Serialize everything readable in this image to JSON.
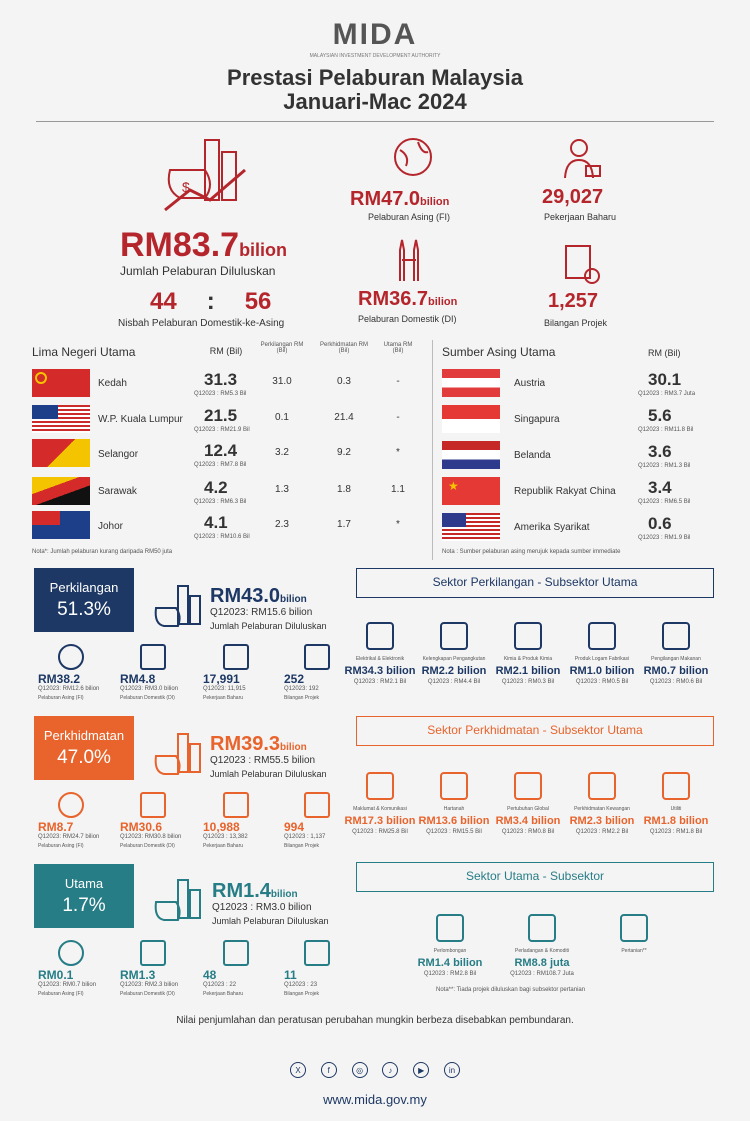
{
  "header": {
    "logo": "MIDA",
    "logo_sub": "MALAYSIAN INVESTMENT DEVELOPMENT AUTHORITY",
    "title1": "Prestasi Pelaburan Malaysia",
    "title2": "Januari-Mac 2024"
  },
  "summary": {
    "total": "RM83.7",
    "total_unit": "bilion",
    "total_label": "Jumlah Pelaburan Diluluskan",
    "ratio_dom": "44",
    "ratio_sep": ":",
    "ratio_for": "56",
    "ratio_label": "Nisbah Pelaburan Domestik-ke-Asing",
    "fi": "RM47.0",
    "fi_unit": "bilion",
    "fi_label": "Pelaburan Asing (FI)",
    "di": "RM36.7",
    "di_unit": "bilion",
    "di_label": "Pelaburan Domestik (DI)",
    "jobs": "29,027",
    "jobs_label": "Pekerjaan Baharu",
    "projects": "1,257",
    "projects_label": "Bilangan Projek"
  },
  "states": {
    "title": "Lima Negeri Utama",
    "col_rm": "RM (Bil)",
    "col_mfg": "Perkilangan RM (Bil)",
    "col_svc": "Perkhidmatan RM (Bil)",
    "col_pri": "Utama RM (Bil)",
    "rows": [
      {
        "name": "Kedah",
        "rm": "31.3",
        "prev": "Q12023 : RM5.3 Bil",
        "mfg": "31.0",
        "svc": "0.3",
        "pri": "-"
      },
      {
        "name": "W.P. Kuala Lumpur",
        "rm": "21.5",
        "prev": "Q12023 : RM21.9 Bil",
        "mfg": "0.1",
        "svc": "21.4",
        "pri": "-"
      },
      {
        "name": "Selangor",
        "rm": "12.4",
        "prev": "Q12023 : RM7.8 Bil",
        "mfg": "3.2",
        "svc": "9.2",
        "pri": "*"
      },
      {
        "name": "Sarawak",
        "rm": "4.2",
        "prev": "Q12023 : RM6.3 Bil",
        "mfg": "1.3",
        "svc": "1.8",
        "pri": "1.1"
      },
      {
        "name": "Johor",
        "rm": "4.1",
        "prev": "Q12023 : RM10.6 Bil",
        "mfg": "2.3",
        "svc": "1.7",
        "pri": "*"
      }
    ],
    "note": "Nota*: Jumlah pelaburan kurang daripada RM50 juta"
  },
  "foreign": {
    "title": "Sumber Asing Utama",
    "col_rm": "RM (Bil)",
    "rows": [
      {
        "name": "Austria",
        "rm": "30.1",
        "prev": "Q12023 : RM3.7 Juta"
      },
      {
        "name": "Singapura",
        "rm": "5.6",
        "prev": "Q12023 : RM11.8 Bil"
      },
      {
        "name": "Belanda",
        "rm": "3.6",
        "prev": "Q12023 : RM1.3 Bil"
      },
      {
        "name": "Republik Rakyat China",
        "rm": "3.4",
        "prev": "Q12023 : RM6.5 Bil"
      },
      {
        "name": "Amerika Syarikat",
        "rm": "0.6",
        "prev": "Q12023 : RM1.9 Bil"
      }
    ],
    "note": "Nota : Sumber pelaburan asing merujuk kepada sumber immediate"
  },
  "sectors": [
    {
      "name": "Perkilangan",
      "pct": "51.3%",
      "total": "RM43.0",
      "unit": "bilion",
      "prev": "Q12023: RM15.6 bilion",
      "label": "Jumlah Pelaburan Diluluskan",
      "fi": "RM38.2",
      "fi_prev": "Q12023: RM12.6 bilion",
      "fi_label": "Pelaburan Asing (FI)",
      "di": "RM4.8",
      "di_prev": "Q12023: RM3.0 bilion",
      "di_label": "Pelaburan Domestik (DI)",
      "jobs": "17,991",
      "jobs_prev": "Q12023: 11,915",
      "jobs_label": "Pekerjaan Baharu",
      "proj": "252",
      "proj_prev": "Q12023: 192",
      "proj_label": "Bilangan Projek",
      "sub_title": "Sektor Perkilangan - Subsektor Utama",
      "subs": [
        {
          "label": "Elektrikal & Elektronik",
          "value": "RM34.3 bilion",
          "prev": "Q12023 : RM2.1 Bil"
        },
        {
          "label": "Kelengkapan Pengangkutan",
          "value": "RM2.2 bilion",
          "prev": "Q12023 : RM4.4 Bil"
        },
        {
          "label": "Kimia & Produk Kimia",
          "value": "RM2.1 bilion",
          "prev": "Q12023 : RM0.3 Bil"
        },
        {
          "label": "Produk Logam Fabrikasi",
          "value": "RM1.0 bilion",
          "prev": "Q12023 : RM0.5 Bil"
        },
        {
          "label": "Pengilangan Makanan",
          "value": "RM0.7 bilion",
          "prev": "Q12023 : RM0.6 Bil"
        }
      ]
    },
    {
      "name": "Perkhidmatan",
      "pct": "47.0%",
      "total": "RM39.3",
      "unit": "bilion",
      "prev": "Q12023 : RM55.5 bilion",
      "label": "Jumlah Pelaburan Diluluskan",
      "fi": "RM8.7",
      "fi_prev": "Q12023: RM24.7 bilion",
      "fi_label": "Pelaburan Asing (FI)",
      "di": "RM30.6",
      "di_prev": "Q12023: RM30.8 bilion",
      "di_label": "Pelaburan Domestik (DI)",
      "jobs": "10,988",
      "jobs_prev": "Q12023 : 13,382",
      "jobs_label": "Pekerjaan Baharu",
      "proj": "994",
      "proj_prev": "Q12023 : 1,137",
      "proj_label": "Bilangan Projek",
      "sub_title": "Sektor Perkhidmatan - Subsektor Utama",
      "subs": [
        {
          "label": "Maklumat & Komunikasi",
          "value": "RM17.3 bilion",
          "prev": "Q12023 : RM25.8 Bil"
        },
        {
          "label": "Hartanah",
          "value": "RM13.6 bilion",
          "prev": "Q12023 : RM15.5 Bil"
        },
        {
          "label": "Pertubuhan Global",
          "value": "RM3.4 bilion",
          "prev": "Q12023 : RM0.8 Bil"
        },
        {
          "label": "Perkhidmatan Kewangan",
          "value": "RM2.3 bilion",
          "prev": "Q12023 : RM2.2 Bil"
        },
        {
          "label": "Utiliti",
          "value": "RM1.8 bilion",
          "prev": "Q12023 : RM1.8 Bil"
        }
      ]
    },
    {
      "name": "Utama",
      "pct": "1.7%",
      "total": "RM1.4",
      "unit": "bilion",
      "prev": "Q12023 : RM3.0 bilion",
      "label": "Jumlah Pelaburan Diluluskan",
      "fi": "RM0.1",
      "fi_prev": "Q12023: RM0.7 bilion",
      "fi_label": "Pelaburan Asing (FI)",
      "di": "RM1.3",
      "di_prev": "Q12023: RM2.3 bilion",
      "di_label": "Pelaburan Domestik (DI)",
      "jobs": "48",
      "jobs_prev": "Q12023 : 22",
      "jobs_label": "Pekerjaan Baharu",
      "proj": "11",
      "proj_prev": "Q12023 : 23",
      "proj_label": "Bilangan Projek",
      "sub_title": "Sektor Utama - Subsektor",
      "subs": [
        {
          "label": "Perlombongan",
          "value": "RM1.4 bilion",
          "prev": "Q12023 : RM2.8 Bil"
        },
        {
          "label": "Perladangan & Komoditi",
          "value": "RM8.8 juta",
          "prev": "Q12023 : RM108.7 Juta"
        },
        {
          "label": "Pertanian**",
          "value": "",
          "prev": ""
        }
      ],
      "note": "Nota**: Tiada projek diluluskan bagi subsektor pertanian"
    }
  ],
  "footer": {
    "disclaimer": "Nilai penjumlahan dan peratusan perubahan mungkin berbeza disebabkan pembundaran.",
    "url": "www.mida.gov.my",
    "socials": [
      {
        "icon": "x-icon",
        "glyph": "X"
      },
      {
        "icon": "facebook-icon",
        "glyph": "f"
      },
      {
        "icon": "instagram-icon",
        "glyph": "◎"
      },
      {
        "icon": "tiktok-icon",
        "glyph": "♪"
      },
      {
        "icon": "youtube-icon",
        "glyph": "▶"
      },
      {
        "icon": "linkedin-icon",
        "glyph": "in"
      }
    ]
  }
}
